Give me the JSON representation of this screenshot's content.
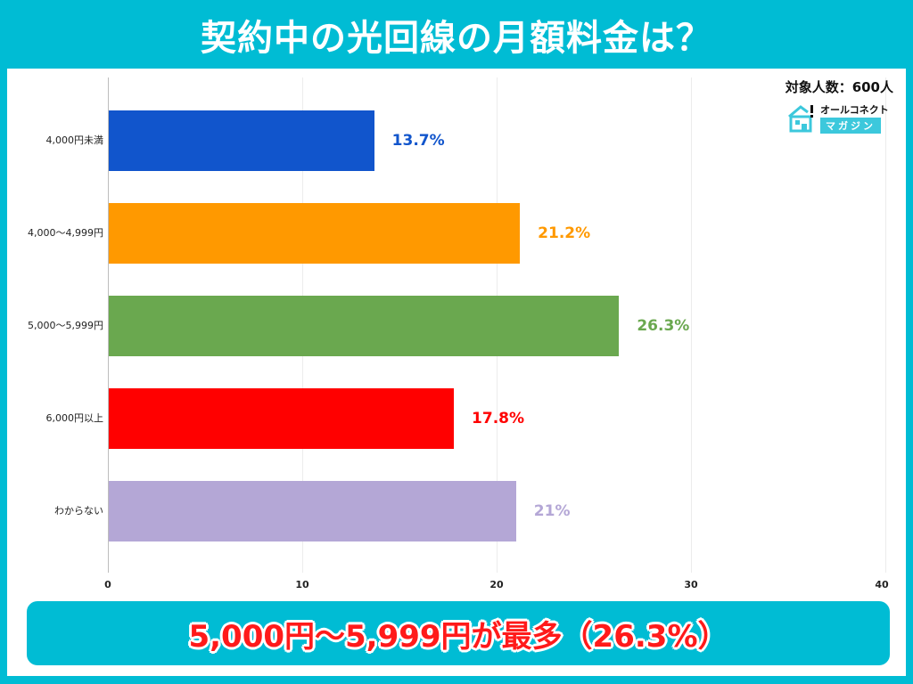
{
  "header": {
    "title": "契約中の光回線の月額料金は？"
  },
  "chart_meta": {
    "sample_size": "対象人数：600人",
    "logo_line1": "オールコネクト",
    "logo_line2": "マガジン"
  },
  "summary": {
    "text": "5,000円～5,999円が最多（26.3%）"
  },
  "chart_data": {
    "type": "bar",
    "orientation": "horizontal",
    "title": "契約中の光回線の月額料金は？",
    "xlabel": "",
    "ylabel": "",
    "xlim": [
      0,
      40
    ],
    "x_ticks": [
      "0",
      "10",
      "20",
      "30",
      "40"
    ],
    "grid": true,
    "legend": "none",
    "categories": [
      "4,000円未満",
      "4,000～4,999円",
      "5,000～5,999円",
      "6,000円以上",
      "わからない"
    ],
    "values": [
      13.7,
      21.2,
      26.3,
      17.8,
      21
    ],
    "value_labels": [
      "13.7%",
      "21.2%",
      "26.3%",
      "17.8%",
      "21%"
    ],
    "colors": [
      "#1155cc",
      "#ff9900",
      "#6aa84f",
      "#ff0000",
      "#b4a7d6"
    ],
    "annotations": [
      "対象人数：600人",
      "5,000円～5,999円が最多（26.3%）"
    ]
  }
}
